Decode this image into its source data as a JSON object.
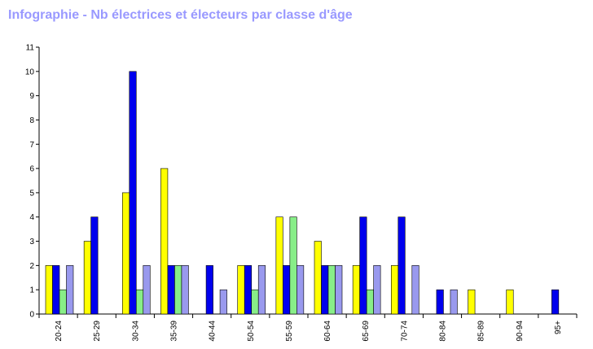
{
  "title": "Infographie - Nb électrices et électeurs par classe d'âge",
  "chart_data": {
    "type": "bar",
    "title": "Infographie - Nb électrices et électeurs par classe d'âge",
    "xlabel": "",
    "ylabel": "",
    "ylim": [
      0,
      11
    ],
    "yticks": [
      0,
      1,
      2,
      3,
      4,
      5,
      6,
      7,
      8,
      9,
      10,
      11
    ],
    "grid": false,
    "legend": "none",
    "categories": [
      "20-24",
      "25-29",
      "30-34",
      "35-39",
      "40-44",
      "50-54",
      "55-59",
      "60-64",
      "65-69",
      "70-74",
      "80-84",
      "85-89",
      "90-94",
      "95+"
    ],
    "series": [
      {
        "color": "#ffff00",
        "values": [
          2,
          3,
          5,
          6,
          0,
          2,
          4,
          3,
          2,
          2,
          0,
          1,
          1,
          0
        ]
      },
      {
        "color": "#0000ee",
        "values": [
          2,
          4,
          10,
          2,
          2,
          2,
          2,
          2,
          4,
          4,
          1,
          0,
          0,
          1
        ]
      },
      {
        "color": "#88ee88",
        "values": [
          1,
          0,
          1,
          2,
          0,
          1,
          4,
          2,
          1,
          0,
          0,
          0,
          0,
          0
        ]
      },
      {
        "color": "#9999ee",
        "values": [
          2,
          0,
          2,
          2,
          1,
          2,
          2,
          2,
          2,
          2,
          1,
          0,
          0,
          0
        ]
      }
    ]
  }
}
